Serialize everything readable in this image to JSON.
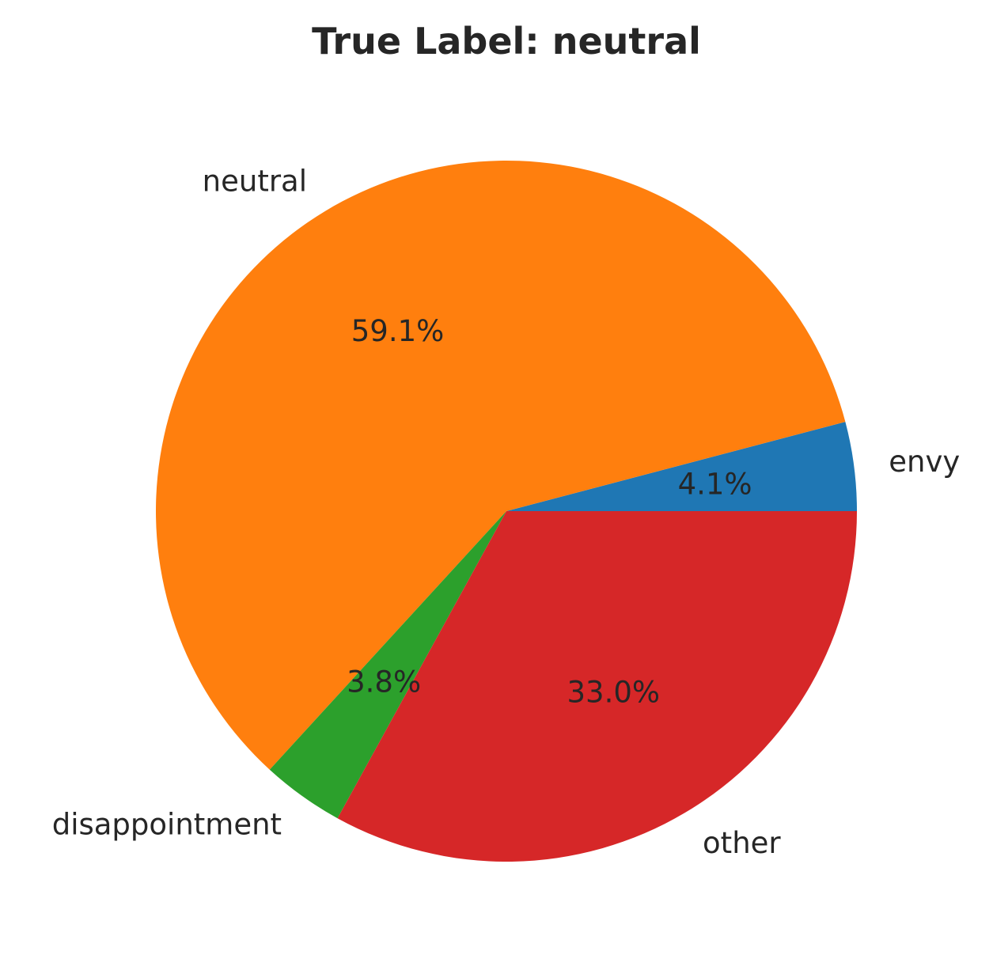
{
  "chart_data": {
    "type": "pie",
    "title": "True Label: neutral",
    "start_angle_deg": 0,
    "direction": "counterclockwise",
    "slices": [
      {
        "label": "envy",
        "value": 4.1,
        "pct_label": "4.1%",
        "color": "#1f77b4"
      },
      {
        "label": "neutral",
        "value": 59.1,
        "pct_label": "59.1%",
        "color": "#ff7f0e"
      },
      {
        "label": "disappointment",
        "value": 3.8,
        "pct_label": "3.8%",
        "color": "#2ca02c"
      },
      {
        "label": "other",
        "value": 33.0,
        "pct_label": "33.0%",
        "color": "#d62728"
      }
    ]
  }
}
